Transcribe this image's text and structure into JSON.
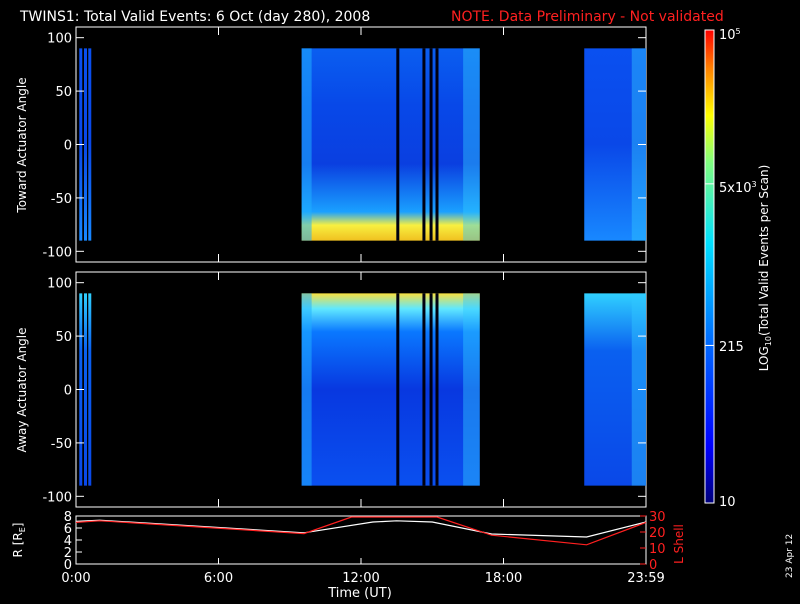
{
  "header": {
    "title": "TWINS1: Total Valid Events:  6 Oct (day 280), 2008",
    "note": "NOTE. Data Preliminary - Not validated"
  },
  "stamp": "23 Apr 12",
  "colorbar": {
    "label": "LOG10(Total Valid Events per Scan)",
    "ticks": [
      "10",
      "215",
      "5x10^3",
      "10^5"
    ],
    "scale": "log",
    "range": [
      10,
      100000
    ]
  },
  "colors": {
    "background": "#000000",
    "axis": "#ffffff",
    "warning": "#ff2020",
    "l_shell": "#ff2020",
    "r": "#ffffff"
  },
  "chart_data": [
    {
      "type": "heatmap",
      "panel": "top",
      "ylabel": "Toward Actuator Angle",
      "ylim": [
        -110,
        110
      ],
      "yticks": [
        "100",
        "50",
        "0",
        "-50",
        "-100"
      ],
      "xlim_hours": [
        0,
        24
      ],
      "data_angle_range": [
        -90,
        90
      ],
      "segments": [
        {
          "start": 0.2,
          "end": 0.6,
          "level": "low"
        },
        {
          "start": 9.5,
          "end": 17.0,
          "level": "mid",
          "high_edge": "bottom"
        },
        {
          "start": 21.4,
          "end": 24.0,
          "level": "low-mid",
          "high_edge": "bottom"
        }
      ],
      "gaps_hours": [
        13.55,
        14.65,
        14.95,
        15.2
      ]
    },
    {
      "type": "heatmap",
      "panel": "middle",
      "ylabel": "Away Actuator Angle",
      "ylim": [
        -110,
        110
      ],
      "yticks": [
        "100",
        "50",
        "0",
        "-50",
        "-100"
      ],
      "xlim_hours": [
        0,
        24
      ],
      "data_angle_range": [
        -90,
        90
      ],
      "segments": [
        {
          "start": 0.2,
          "end": 0.6,
          "level": "low",
          "high_edge": "top"
        },
        {
          "start": 9.5,
          "end": 17.0,
          "level": "mid",
          "high_edge": "top"
        },
        {
          "start": 21.4,
          "end": 24.0,
          "level": "low-mid",
          "high_edge": "top"
        }
      ],
      "gaps_hours": [
        13.55,
        14.65,
        14.95,
        15.2
      ]
    },
    {
      "type": "line",
      "panel": "bottom",
      "xlabel": "Time (UT)",
      "xticks": [
        "0:00",
        "6:00",
        "12:00",
        "18:00",
        "23:59"
      ],
      "xtick_hours": [
        0,
        6,
        12,
        18,
        24
      ],
      "left_axis": {
        "label": "R [RE]",
        "ticks": [
          "8",
          "6",
          "4",
          "2",
          "0"
        ],
        "ylim": [
          0,
          8
        ]
      },
      "right_axis": {
        "label": "L Shell",
        "ticks": [
          "30",
          "20",
          "10",
          "0"
        ],
        "ylim": [
          0,
          30
        ]
      },
      "series": [
        {
          "name": "R [RE]",
          "axis": "left",
          "x": [
            0,
            1,
            9.6,
            12.5,
            13.5,
            15,
            17.5,
            21.5,
            24
          ],
          "y": [
            7.1,
            7.3,
            5.2,
            7.0,
            7.2,
            7.0,
            5.0,
            4.5,
            7.0
          ]
        },
        {
          "name": "L Shell",
          "axis": "right",
          "x": [
            0,
            1,
            9.6,
            11.6,
            15.2,
            17.5,
            21.5,
            24
          ],
          "y": [
            26,
            27,
            19,
            30,
            30,
            18,
            12,
            26
          ]
        }
      ]
    }
  ]
}
